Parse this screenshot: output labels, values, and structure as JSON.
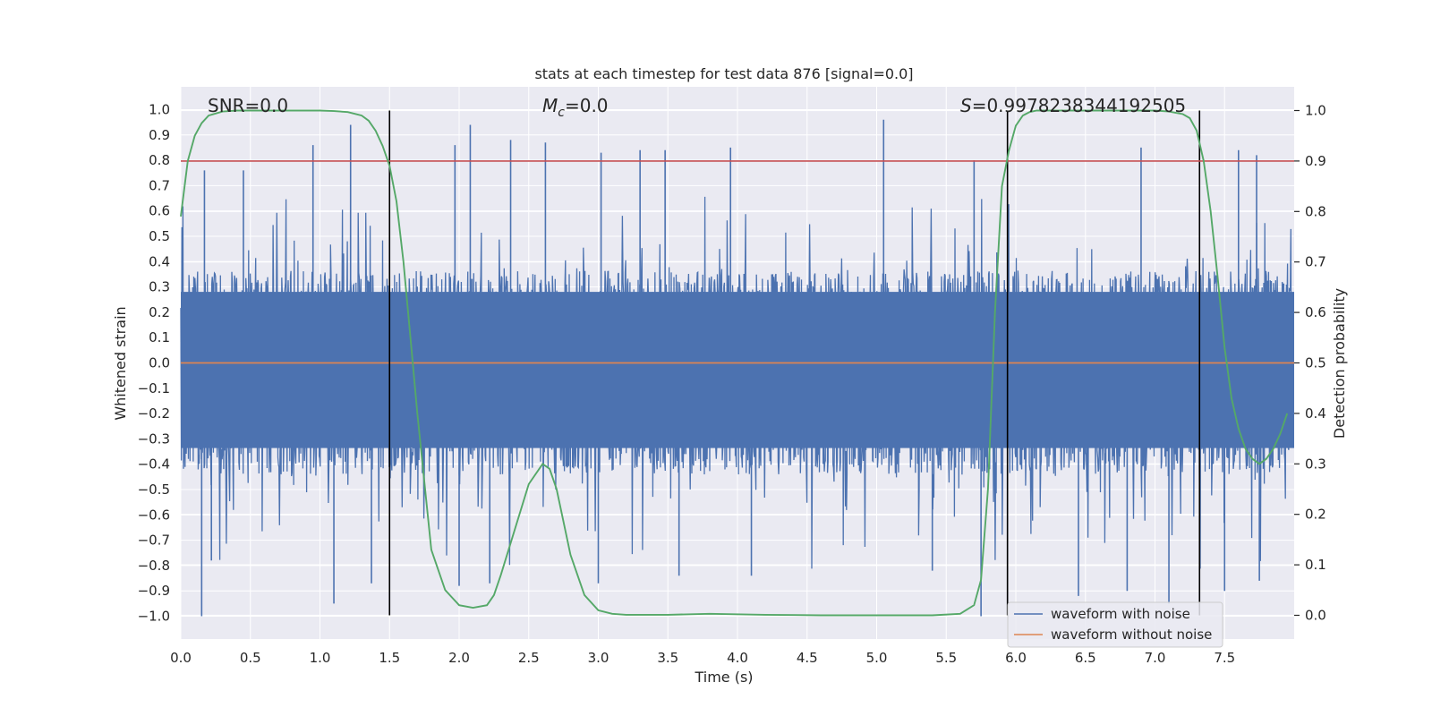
{
  "chart_data": {
    "type": "line",
    "title": "stats at each timestep for test data 876 [signal=0.0]",
    "xlabel": "Time (s)",
    "ylabel": "Whitened strain",
    "y2label": "Detection probability",
    "xlim": [
      0.0,
      8.0
    ],
    "ylim": [
      -1.09,
      1.09
    ],
    "y2lim": [
      -0.047,
      1.047
    ],
    "grid": true,
    "x_ticks": [
      "0.0",
      "0.5",
      "1.0",
      "1.5",
      "2.0",
      "2.5",
      "3.0",
      "3.5",
      "4.0",
      "4.5",
      "5.0",
      "5.5",
      "6.0",
      "6.5",
      "7.0",
      "7.5"
    ],
    "y_ticks": [
      "1.0",
      "0.9",
      "0.8",
      "0.7",
      "0.6",
      "0.5",
      "0.4",
      "0.3",
      "0.2",
      "0.1",
      "0.0",
      "−0.1",
      "−0.2",
      "−0.3",
      "−0.4",
      "−0.5",
      "−0.6",
      "−0.7",
      "−0.8",
      "−0.9",
      "−1.0"
    ],
    "y2_ticks": [
      "1.0",
      "0.9",
      "0.8",
      "0.7",
      "0.6",
      "0.5",
      "0.4",
      "0.3",
      "0.2",
      "0.1",
      "0.0"
    ],
    "annotations": {
      "snr": "SNR=0.0",
      "mc_symbol": "M",
      "mc_sub": "c",
      "mc_value": "=0.0",
      "s_symbol": "S",
      "s_value": "=0.9978238344192505"
    },
    "threshold": 0.9,
    "vertical_markers": [
      1.5,
      5.94,
      7.32
    ],
    "series": [
      {
        "name": "waveform with noise",
        "color": "#4c72b0",
        "axis": "left",
        "description": "dense noise envelope",
        "typical_upper": 0.33,
        "typical_lower": -0.42,
        "peaks_upper": [
          {
            "t": 0.17,
            "v": 0.76
          },
          {
            "t": 0.45,
            "v": 0.76
          },
          {
            "t": 0.95,
            "v": 0.86
          },
          {
            "t": 1.22,
            "v": 0.94
          },
          {
            "t": 1.97,
            "v": 0.86
          },
          {
            "t": 2.08,
            "v": 0.94
          },
          {
            "t": 2.37,
            "v": 0.88
          },
          {
            "t": 2.62,
            "v": 0.87
          },
          {
            "t": 3.02,
            "v": 0.83
          },
          {
            "t": 3.3,
            "v": 0.84
          },
          {
            "t": 3.48,
            "v": 0.84
          },
          {
            "t": 3.95,
            "v": 0.85
          },
          {
            "t": 5.05,
            "v": 0.96
          },
          {
            "t": 5.7,
            "v": 0.8
          },
          {
            "t": 6.9,
            "v": 0.85
          },
          {
            "t": 7.6,
            "v": 0.84
          },
          {
            "t": 7.73,
            "v": 0.82
          }
        ],
        "peaks_lower": [
          {
            "t": 0.15,
            "v": -1.0
          },
          {
            "t": 0.22,
            "v": -0.78
          },
          {
            "t": 1.1,
            "v": -0.95
          },
          {
            "t": 1.37,
            "v": -0.87
          },
          {
            "t": 2.0,
            "v": -0.88
          },
          {
            "t": 2.22,
            "v": -0.87
          },
          {
            "t": 3.0,
            "v": -0.87
          },
          {
            "t": 3.58,
            "v": -0.84
          },
          {
            "t": 4.1,
            "v": -0.84
          },
          {
            "t": 5.4,
            "v": -0.82
          },
          {
            "t": 5.75,
            "v": -1.0
          },
          {
            "t": 6.45,
            "v": -0.92
          },
          {
            "t": 6.8,
            "v": -0.9
          },
          {
            "t": 7.1,
            "v": -0.95
          },
          {
            "t": 7.5,
            "v": -0.9
          },
          {
            "t": 7.75,
            "v": -0.86
          }
        ]
      },
      {
        "name": "waveform without noise",
        "color": "#dd8452",
        "axis": "left",
        "x": [
          0.0,
          8.0
        ],
        "y": [
          0.0,
          0.0
        ]
      },
      {
        "name": "detection probability",
        "color": "#55a868",
        "axis": "right",
        "x": [
          0.0,
          0.05,
          0.1,
          0.15,
          0.2,
          0.3,
          0.4,
          0.6,
          0.8,
          1.0,
          1.1,
          1.2,
          1.3,
          1.35,
          1.4,
          1.45,
          1.5,
          1.55,
          1.6,
          1.65,
          1.7,
          1.8,
          1.9,
          2.0,
          2.1,
          2.2,
          2.25,
          2.3,
          2.4,
          2.5,
          2.6,
          2.65,
          2.7,
          2.8,
          2.9,
          3.0,
          3.1,
          3.2,
          3.5,
          3.8,
          4.2,
          4.6,
          5.0,
          5.4,
          5.6,
          5.7,
          5.75,
          5.8,
          5.85,
          5.9,
          5.95,
          6.0,
          6.05,
          6.1,
          6.15,
          6.2,
          6.3,
          6.5,
          6.8,
          7.0,
          7.1,
          7.2,
          7.25,
          7.3,
          7.35,
          7.4,
          7.45,
          7.5,
          7.55,
          7.6,
          7.65,
          7.7,
          7.75,
          7.8,
          7.85,
          7.9,
          7.95
        ],
        "y": [
          0.79,
          0.9,
          0.95,
          0.975,
          0.99,
          0.998,
          1.0,
          1.0,
          1.0,
          1.0,
          0.999,
          0.997,
          0.99,
          0.98,
          0.96,
          0.93,
          0.89,
          0.82,
          0.7,
          0.55,
          0.4,
          0.13,
          0.05,
          0.02,
          0.015,
          0.02,
          0.04,
          0.08,
          0.17,
          0.26,
          0.3,
          0.29,
          0.25,
          0.12,
          0.04,
          0.01,
          0.003,
          0.001,
          0.001,
          0.003,
          0.001,
          0.0,
          0.0,
          0.0,
          0.003,
          0.02,
          0.07,
          0.25,
          0.6,
          0.85,
          0.92,
          0.97,
          0.99,
          0.997,
          1.0,
          1.0,
          1.0,
          1.0,
          1.0,
          1.0,
          0.998,
          0.993,
          0.985,
          0.96,
          0.9,
          0.8,
          0.67,
          0.53,
          0.43,
          0.37,
          0.33,
          0.31,
          0.3,
          0.31,
          0.33,
          0.36,
          0.4
        ]
      },
      {
        "name": "threshold",
        "color": "#c44e52",
        "axis": "right",
        "x": [
          0.0,
          8.0
        ],
        "y": [
          0.9,
          0.9
        ]
      }
    ],
    "legend": {
      "placement": "lower-right",
      "entries": [
        {
          "label": "waveform with noise",
          "color": "#4c72b0"
        },
        {
          "label": "waveform without noise",
          "color": "#dd8452"
        }
      ]
    }
  }
}
